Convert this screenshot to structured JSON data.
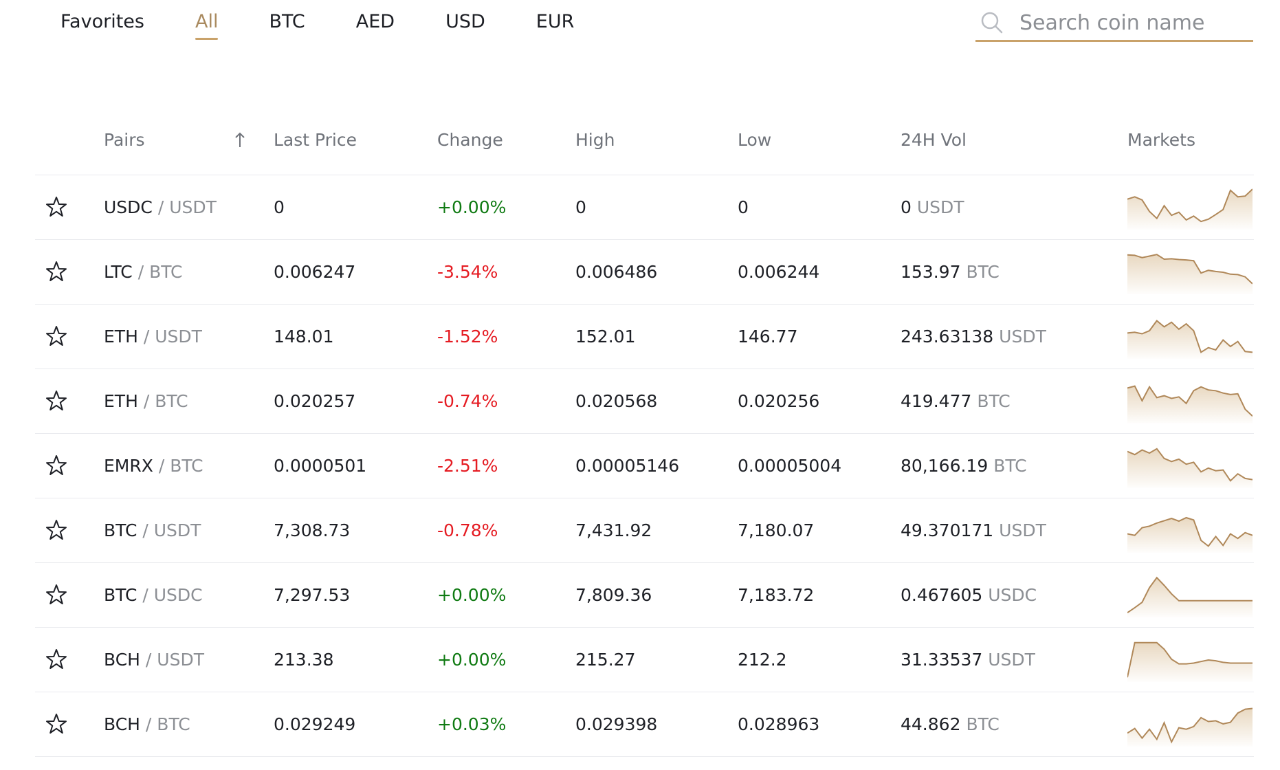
{
  "tabs": [
    {
      "label": "Favorites",
      "active": false
    },
    {
      "label": "All",
      "active": true
    },
    {
      "label": "BTC",
      "active": false
    },
    {
      "label": "AED",
      "active": false
    },
    {
      "label": "USD",
      "active": false
    },
    {
      "label": "EUR",
      "active": false
    }
  ],
  "search": {
    "placeholder": "Search coin name",
    "value": ""
  },
  "table": {
    "headers": {
      "pairs": "Pairs",
      "last_price": "Last Price",
      "change": "Change",
      "high": "High",
      "low": "Low",
      "vol": "24H Vol",
      "markets": "Markets"
    },
    "rows": [
      {
        "base": "USDC",
        "quote": "/ USDT",
        "last": "0",
        "change": "+0.00%",
        "dir": "pos",
        "high": "0",
        "low": "0",
        "vol": "0",
        "vol_unit": "USDT",
        "spark": [
          0.72,
          0.78,
          0.7,
          0.4,
          0.22,
          0.55,
          0.3,
          0.38,
          0.18,
          0.28,
          0.14,
          0.2,
          0.32,
          0.45,
          0.95,
          0.78,
          0.8,
          0.98
        ]
      },
      {
        "base": "LTC",
        "quote": "/ BTC",
        "last": "0.006247",
        "change": "-3.54%",
        "dir": "neg",
        "high": "0.006486",
        "low": "0.006244",
        "vol": "153.97",
        "vol_unit": "BTC",
        "spark": [
          0.95,
          0.94,
          0.88,
          0.92,
          0.96,
          0.84,
          0.85,
          0.83,
          0.82,
          0.8,
          0.48,
          0.55,
          0.52,
          0.5,
          0.45,
          0.44,
          0.38,
          0.2
        ]
      },
      {
        "base": "ETH",
        "quote": "/ USDT",
        "last": "148.01",
        "change": "-1.52%",
        "dir": "neg",
        "high": "152.01",
        "low": "146.77",
        "vol": "243.63138",
        "vol_unit": "USDT",
        "spark": [
          0.6,
          0.62,
          0.58,
          0.66,
          0.92,
          0.76,
          0.88,
          0.7,
          0.84,
          0.66,
          0.1,
          0.22,
          0.16,
          0.42,
          0.25,
          0.38,
          0.12,
          0.1
        ]
      },
      {
        "base": "ETH",
        "quote": "/ BTC",
        "last": "0.020257",
        "change": "-0.74%",
        "dir": "neg",
        "high": "0.020568",
        "low": "0.020256",
        "vol": "419.477",
        "vol_unit": "BTC",
        "spark": [
          0.85,
          0.9,
          0.52,
          0.88,
          0.6,
          0.65,
          0.58,
          0.62,
          0.45,
          0.78,
          0.88,
          0.8,
          0.78,
          0.72,
          0.68,
          0.7,
          0.3,
          0.12
        ]
      },
      {
        "base": "EMRX",
        "quote": "/ BTC",
        "last": "0.0000501",
        "change": "-2.51%",
        "dir": "neg",
        "high": "0.00005146",
        "low": "0.00005004",
        "vol": "80,166.19",
        "vol_unit": "BTC",
        "spark": [
          0.88,
          0.8,
          0.92,
          0.84,
          0.95,
          0.7,
          0.62,
          0.68,
          0.55,
          0.6,
          0.35,
          0.45,
          0.38,
          0.4,
          0.12,
          0.3,
          0.18,
          0.15
        ]
      },
      {
        "base": "BTC",
        "quote": "/ USDT",
        "last": "7,308.73",
        "change": "-0.78%",
        "dir": "neg",
        "high": "7,431.92",
        "low": "7,180.07",
        "vol": "49.370171",
        "vol_unit": "USDT",
        "spark": [
          0.42,
          0.38,
          0.58,
          0.62,
          0.7,
          0.76,
          0.82,
          0.75,
          0.84,
          0.78,
          0.25,
          0.1,
          0.35,
          0.12,
          0.42,
          0.3,
          0.45,
          0.38
        ]
      },
      {
        "base": "BTC",
        "quote": "/ USDC",
        "last": "7,297.53",
        "change": "+0.00%",
        "dir": "pos",
        "high": "7,809.36",
        "low": "7,183.72",
        "vol": "0.467605",
        "vol_unit": "USDC",
        "spark": [
          0.05,
          0.18,
          0.32,
          0.7,
          0.96,
          0.76,
          0.54,
          0.36,
          0.36,
          0.36,
          0.36,
          0.36,
          0.36,
          0.36,
          0.36,
          0.36,
          0.36,
          0.36
        ]
      },
      {
        "base": "BCH",
        "quote": "/ USDT",
        "last": "213.38",
        "change": "+0.00%",
        "dir": "pos",
        "high": "215.27",
        "low": "212.2",
        "vol": "31.33537",
        "vol_unit": "USDT",
        "spark": [
          0.05,
          0.95,
          0.95,
          0.95,
          0.95,
          0.78,
          0.52,
          0.4,
          0.4,
          0.42,
          0.46,
          0.5,
          0.48,
          0.44,
          0.42,
          0.42,
          0.42,
          0.42
        ]
      },
      {
        "base": "BCH",
        "quote": "/ BTC",
        "last": "0.029249",
        "change": "+0.03%",
        "dir": "pos",
        "high": "0.029398",
        "low": "0.028963",
        "vol": "44.862",
        "vol_unit": "BTC",
        "spark": [
          0.28,
          0.4,
          0.15,
          0.38,
          0.12,
          0.55,
          0.05,
          0.42,
          0.38,
          0.45,
          0.68,
          0.58,
          0.6,
          0.52,
          0.56,
          0.8,
          0.9,
          0.92
        ]
      }
    ]
  },
  "colors": {
    "accent": "#c9a26a",
    "spark_stroke": "#b08859",
    "positive": "#0f7a12",
    "negative": "#e51b22"
  }
}
